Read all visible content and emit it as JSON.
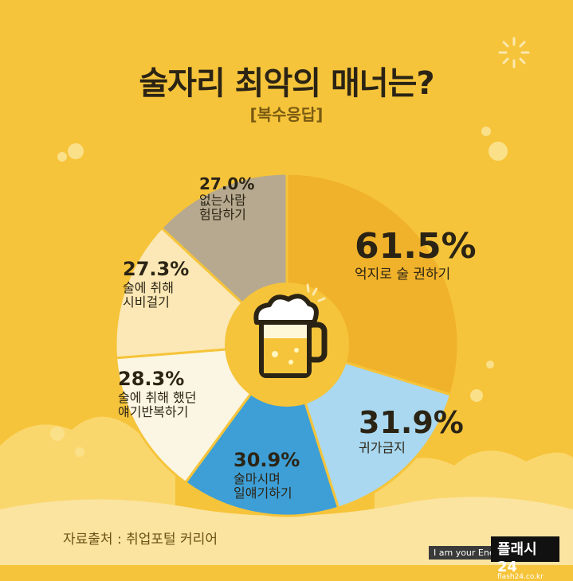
{
  "header": {
    "title": "술자리 최악의 매너는?",
    "subtitle": "[복수응답]"
  },
  "footer": {
    "source": "자료출처 : 취업포털 커리어",
    "watermark_left": "I am your Ene",
    "watermark_brand": "플래시24",
    "watermark_url": "flash24.co.kr"
  },
  "colors": {
    "background": "#f6c43a",
    "slice_1": "#f0b22a",
    "slice_2": "#a9d8f0",
    "slice_3": "#3e9fd6",
    "slice_4": "#fbf6e3",
    "slice_5": "#fbe8b6",
    "slice_6": "#b6a98f",
    "center": "#f6c43a"
  },
  "icons": {
    "center": "beer-mug-icon"
  },
  "chart_data": {
    "type": "pie",
    "categories": [
      "억지로 술 권하기",
      "귀가 금지",
      "술 마시며 일 얘기하기",
      "술에 취해 했던 얘기 반복하기",
      "술에 취해 시비걸기",
      "없는 사람 험담하기"
    ],
    "values": [
      61.5,
      31.9,
      30.9,
      28.3,
      27.3,
      27.0
    ],
    "labels": [
      {
        "pct": "61.5%",
        "line1": "억지로 술 권하기",
        "line2": ""
      },
      {
        "pct": "31.9%",
        "line1": "귀가금지",
        "line2": ""
      },
      {
        "pct": "30.9%",
        "line1": "술마시며",
        "line2": "일얘기하기"
      },
      {
        "pct": "28.3%",
        "line1": "술에 취해 했던",
        "line2": "얘기반복하기"
      },
      {
        "pct": "27.3%",
        "line1": "술에 취해",
        "line2": "시비걸기"
      },
      {
        "pct": "27.0%",
        "line1": "없는사람",
        "line2": "험담하기"
      }
    ],
    "title": "술자리 최악의 매너는?",
    "subtitle": "[복수응답]"
  }
}
